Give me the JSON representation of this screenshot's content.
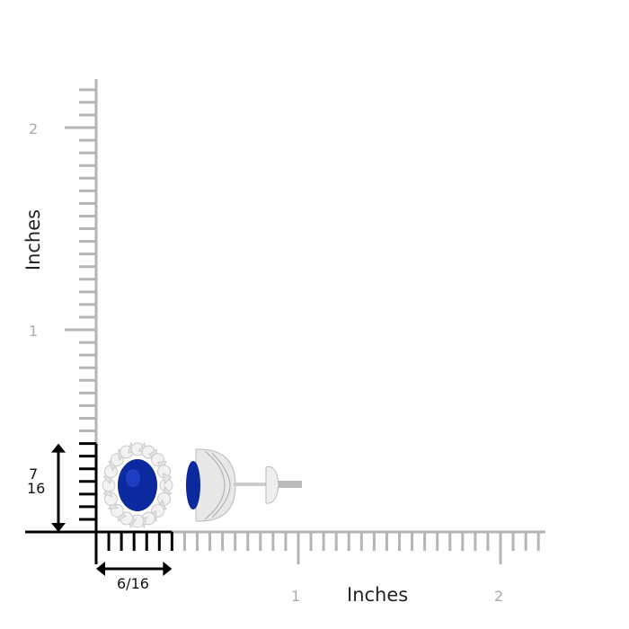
{
  "y_axis": {
    "title": "Inches",
    "tick_labels": [
      "1",
      "2"
    ]
  },
  "x_axis": {
    "title": "Inches",
    "tick_labels": [
      "1",
      "2"
    ]
  },
  "dimensions": {
    "height_label_num": "7",
    "height_label_den": "16",
    "width_label": "6/16",
    "height_sixteenths": 7,
    "width_sixteenths": 6
  },
  "colors": {
    "ruler_gray": "#b5b5b5",
    "ruler_black": "#000000",
    "sapphire": "#0b2aa0",
    "metal": "#e6e6e6"
  }
}
